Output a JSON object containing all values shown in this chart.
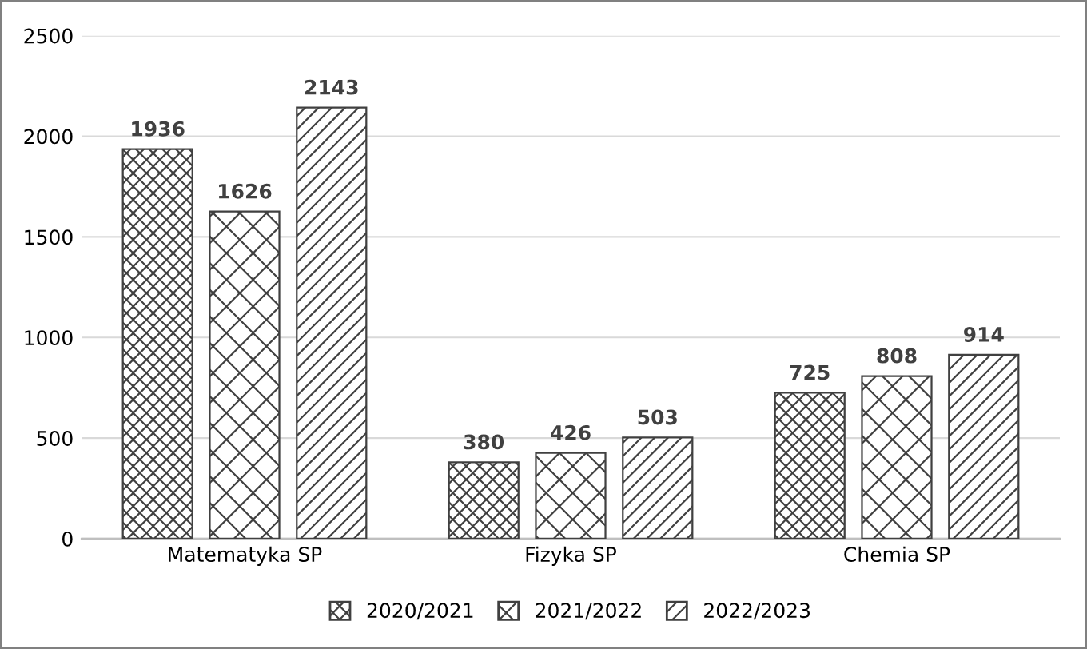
{
  "chart_data": {
    "type": "bar",
    "categories": [
      "Matematyka SP",
      "Fizyka SP",
      "Chemia SP"
    ],
    "series": [
      {
        "name": "2020/2021",
        "color": "#404040",
        "values": [
          1936,
          380,
          725
        ]
      },
      {
        "name": "2021/2022",
        "color": "#404040",
        "values": [
          1626,
          426,
          808
        ]
      },
      {
        "name": "2022/2023",
        "color": "#404040",
        "values": [
          2143,
          503,
          914
        ]
      }
    ],
    "ylim": [
      0,
      2500
    ],
    "yticks": [
      0,
      500,
      1000,
      1500,
      2000,
      2500
    ],
    "grid": "y",
    "legend": "bottom",
    "data_labels": true
  }
}
